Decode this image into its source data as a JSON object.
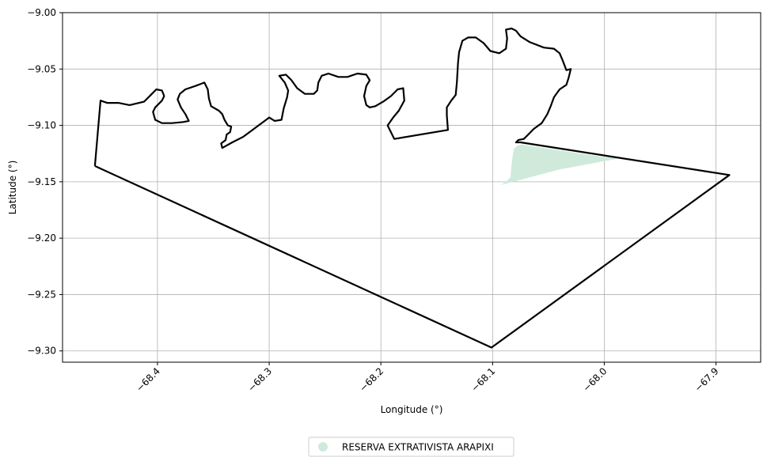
{
  "chart_data": {
    "type": "map",
    "xlabel": "Longitude (°)",
    "ylabel": "Latitude (°)",
    "xlim": [
      -68.485,
      -67.86
    ],
    "ylim": [
      -9.31,
      -9.0
    ],
    "x_ticks": [
      -68.4,
      -68.3,
      -68.2,
      -68.1,
      -68.0,
      -67.9
    ],
    "x_tick_labels": [
      "−68.4",
      "−68.3",
      "−68.2",
      "−68.1",
      "−68.0",
      "−67.9"
    ],
    "y_ticks": [
      -9.3,
      -9.25,
      -9.2,
      -9.15,
      -9.1,
      -9.05,
      -9.0
    ],
    "y_tick_labels": [
      "−9.30",
      "−9.25",
      "−9.20",
      "−9.15",
      "−9.10",
      "−9.05",
      "−9.00"
    ],
    "grid": true,
    "legend": {
      "placement": "bottom-center",
      "entries": [
        {
          "label": "RESERVA EXTRATIVISTA ARAPIXI",
          "color": "#cfeadb"
        }
      ]
    },
    "fill_area": {
      "name": "RESERVA EXTRATIVISTA ARAPIXI",
      "color": "#cfeadb",
      "points": [
        [
          -68.081,
          -9.121
        ],
        [
          -68.078,
          -9.118
        ],
        [
          -68.074,
          -9.117
        ],
        [
          -68.0,
          -9.128
        ],
        [
          -67.985,
          -9.129
        ],
        [
          -68.04,
          -9.139
        ],
        [
          -68.093,
          -9.153
        ],
        [
          -68.088,
          -9.15
        ],
        [
          -68.084,
          -9.146
        ],
        [
          -68.083,
          -9.135
        ],
        [
          -68.082,
          -9.127
        ]
      ]
    },
    "outline": {
      "color": "#000000",
      "points": [
        [
          -68.456,
          -9.136
        ],
        [
          -68.451,
          -9.078
        ],
        [
          -68.445,
          -9.08
        ],
        [
          -68.435,
          -9.08
        ],
        [
          -68.425,
          -9.082
        ],
        [
          -68.412,
          -9.079
        ],
        [
          -68.405,
          -9.072
        ],
        [
          -68.401,
          -9.068
        ],
        [
          -68.396,
          -9.069
        ],
        [
          -68.394,
          -9.074
        ],
        [
          -68.396,
          -9.078
        ],
        [
          -68.402,
          -9.084
        ],
        [
          -68.404,
          -9.088
        ],
        [
          -68.402,
          -9.095
        ],
        [
          -68.396,
          -9.098
        ],
        [
          -68.387,
          -9.098
        ],
        [
          -68.377,
          -9.097
        ],
        [
          -68.372,
          -9.096
        ],
        [
          -68.375,
          -9.09
        ],
        [
          -68.379,
          -9.084
        ],
        [
          -68.382,
          -9.077
        ],
        [
          -68.38,
          -9.072
        ],
        [
          -68.375,
          -9.068
        ],
        [
          -68.366,
          -9.065
        ],
        [
          -68.358,
          -9.062
        ],
        [
          -68.355,
          -9.068
        ],
        [
          -68.354,
          -9.076
        ],
        [
          -68.352,
          -9.083
        ],
        [
          -68.345,
          -9.087
        ],
        [
          -68.342,
          -9.09
        ],
        [
          -68.34,
          -9.095
        ],
        [
          -68.337,
          -9.1
        ],
        [
          -68.334,
          -9.101
        ],
        [
          -68.335,
          -9.106
        ],
        [
          -68.338,
          -9.108
        ],
        [
          -68.339,
          -9.113
        ],
        [
          -68.343,
          -9.116
        ],
        [
          -68.342,
          -9.12
        ],
        [
          -68.333,
          -9.115
        ],
        [
          -68.323,
          -9.11
        ],
        [
          -68.3,
          -9.093
        ],
        [
          -68.295,
          -9.096
        ],
        [
          -68.289,
          -9.095
        ],
        [
          -68.287,
          -9.085
        ],
        [
          -68.284,
          -9.075
        ],
        [
          -68.283,
          -9.069
        ],
        [
          -68.286,
          -9.062
        ],
        [
          -68.291,
          -9.056
        ],
        [
          -68.285,
          -9.055
        ],
        [
          -68.28,
          -9.06
        ],
        [
          -68.275,
          -9.067
        ],
        [
          -68.268,
          -9.072
        ],
        [
          -68.26,
          -9.072
        ],
        [
          -68.257,
          -9.069
        ],
        [
          -68.256,
          -9.062
        ],
        [
          -68.253,
          -9.056
        ],
        [
          -68.247,
          -9.054
        ],
        [
          -68.238,
          -9.057
        ],
        [
          -68.23,
          -9.057
        ],
        [
          -68.221,
          -9.054
        ],
        [
          -68.213,
          -9.055
        ],
        [
          -68.21,
          -9.06
        ],
        [
          -68.213,
          -9.065
        ],
        [
          -68.215,
          -9.074
        ],
        [
          -68.213,
          -9.082
        ],
        [
          -68.21,
          -9.084
        ],
        [
          -68.205,
          -9.083
        ],
        [
          -68.198,
          -9.079
        ],
        [
          -68.191,
          -9.074
        ],
        [
          -68.185,
          -9.068
        ],
        [
          -68.18,
          -9.067
        ],
        [
          -68.179,
          -9.078
        ],
        [
          -68.184,
          -9.087
        ],
        [
          -68.189,
          -9.093
        ],
        [
          -68.194,
          -9.1
        ],
        [
          -68.188,
          -9.112
        ],
        [
          -68.14,
          -9.104
        ],
        [
          -68.141,
          -9.091
        ],
        [
          -68.141,
          -9.084
        ],
        [
          -68.137,
          -9.078
        ],
        [
          -68.133,
          -9.073
        ],
        [
          -68.132,
          -9.062
        ],
        [
          -68.131,
          -9.045
        ],
        [
          -68.13,
          -9.035
        ],
        [
          -68.127,
          -9.025
        ],
        [
          -68.122,
          -9.022
        ],
        [
          -68.115,
          -9.022
        ],
        [
          -68.108,
          -9.027
        ],
        [
          -68.102,
          -9.034
        ],
        [
          -68.094,
          -9.036
        ],
        [
          -68.088,
          -9.032
        ],
        [
          -68.087,
          -9.023
        ],
        [
          -68.088,
          -9.015
        ],
        [
          -68.083,
          -9.014
        ],
        [
          -68.079,
          -9.016
        ],
        [
          -68.075,
          -9.021
        ],
        [
          -68.067,
          -9.026
        ],
        [
          -68.054,
          -9.031
        ],
        [
          -68.045,
          -9.032
        ],
        [
          -68.04,
          -9.036
        ],
        [
          -68.037,
          -9.043
        ],
        [
          -68.034,
          -9.051
        ],
        [
          -68.03,
          -9.05
        ],
        [
          -68.032,
          -9.058
        ],
        [
          -68.034,
          -9.064
        ],
        [
          -68.04,
          -9.068
        ],
        [
          -68.045,
          -9.075
        ],
        [
          -68.048,
          -9.083
        ],
        [
          -68.051,
          -9.09
        ],
        [
          -68.056,
          -9.098
        ],
        [
          -68.063,
          -9.103
        ],
        [
          -68.068,
          -9.108
        ],
        [
          -68.072,
          -9.112
        ],
        [
          -68.077,
          -9.113
        ],
        [
          -68.079,
          -9.115
        ],
        [
          -68.075,
          -9.115
        ],
        [
          -67.888,
          -9.144
        ],
        [
          -68.101,
          -9.297
        ],
        [
          -68.456,
          -9.136
        ]
      ]
    }
  }
}
